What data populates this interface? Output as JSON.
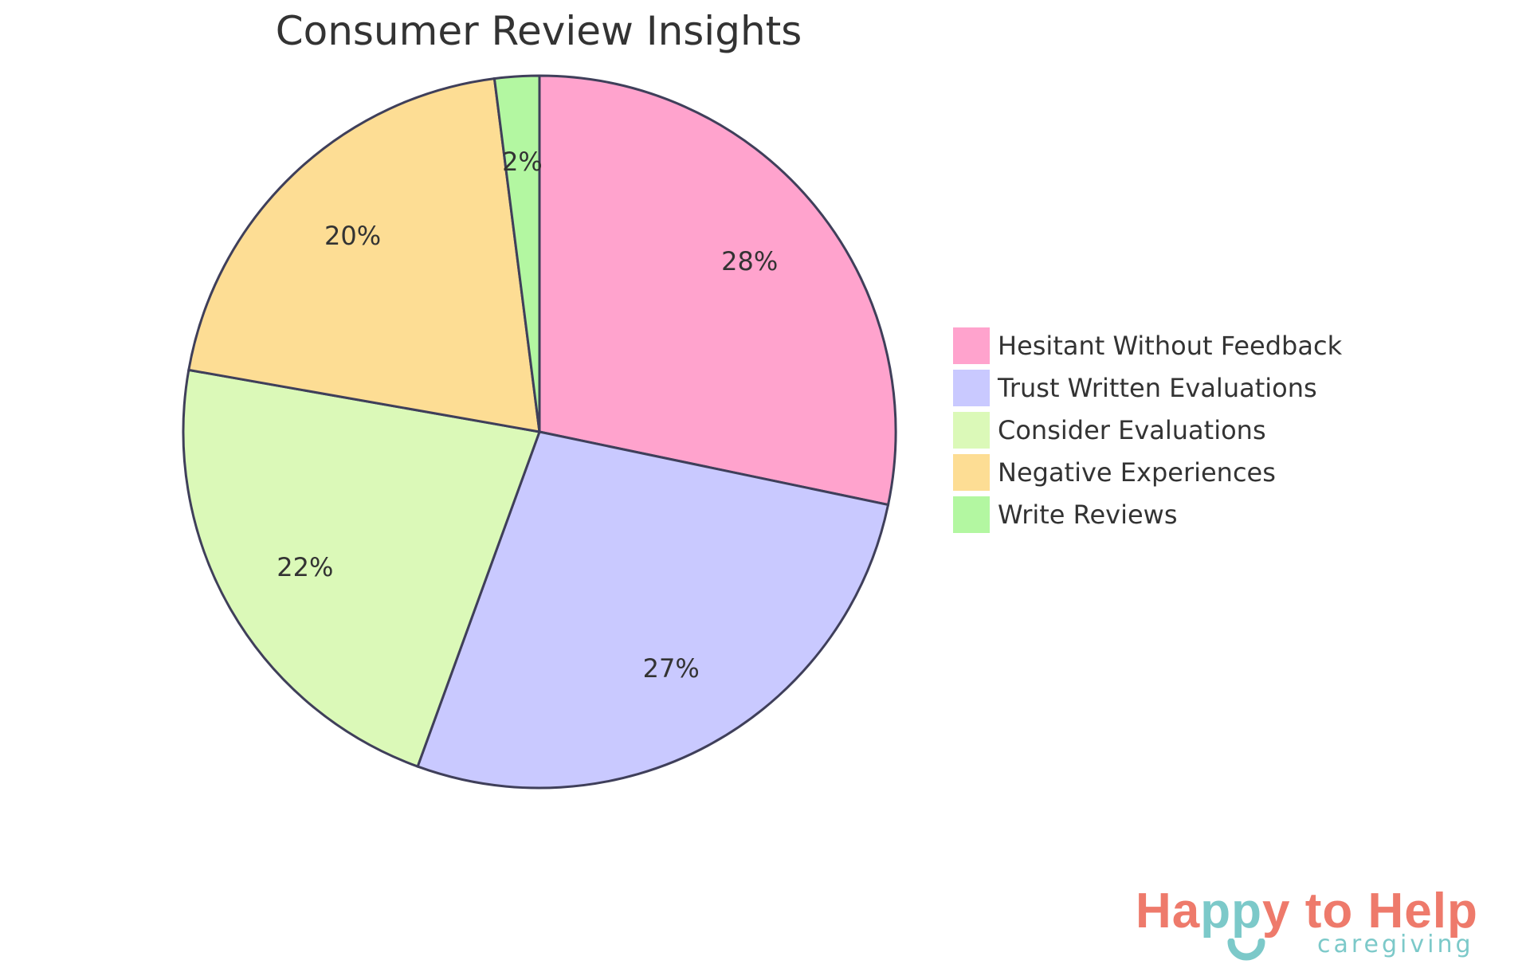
{
  "chart_data": {
    "type": "pie",
    "title": "Consumer Review Insights",
    "categories": [
      "Hesitant Without Feedback",
      "Trust Written Evaluations",
      "Consider Evaluations",
      "Negative Experiences",
      "Write Reviews"
    ],
    "values": [
      28,
      27,
      22,
      20,
      2
    ],
    "labels": [
      "28%",
      "27%",
      "22%",
      "20%",
      "2%"
    ],
    "colors": [
      "#ffa3cd",
      "#c9c9ff",
      "#dbf9b8",
      "#fddd94",
      "#b3f7a1"
    ],
    "stroke_color": "#3f3f5a",
    "legend_position": "right"
  },
  "logo": {
    "text_a": "Ha",
    "text_b": "pp",
    "text_c": "y to Help",
    "sub": "caregiving"
  }
}
